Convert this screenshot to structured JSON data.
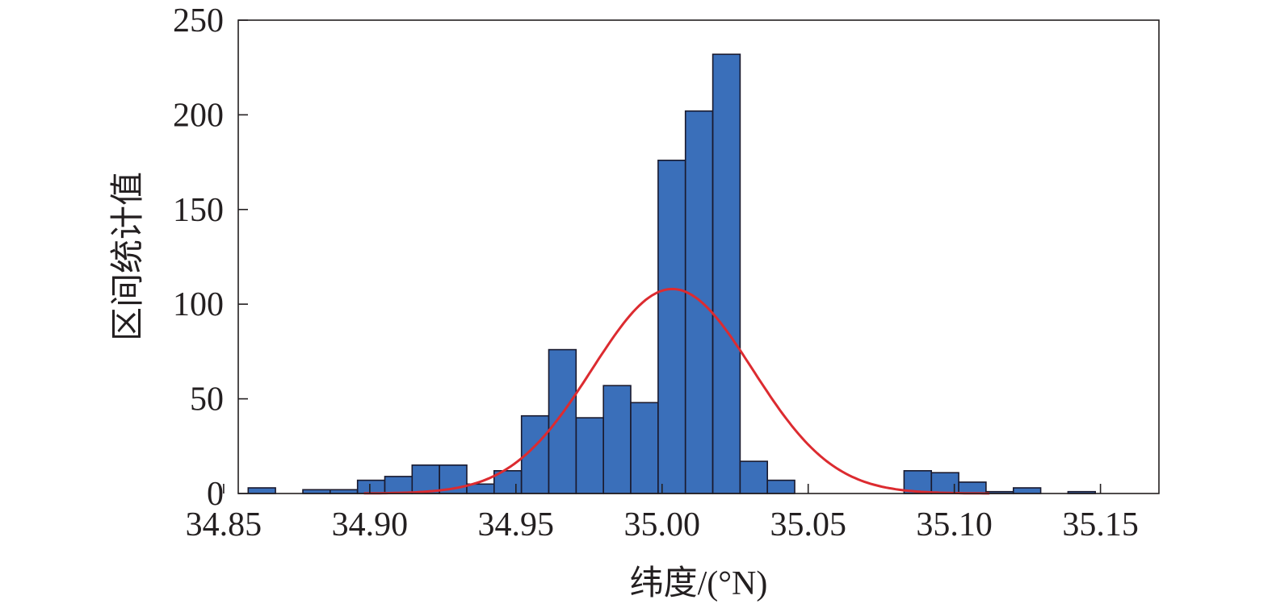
{
  "chart_data": {
    "type": "bar",
    "xlabel": "纬度/(°N)",
    "ylabel": "区间统计值",
    "xlim": [
      34.855,
      35.17
    ],
    "ylim": [
      0,
      250
    ],
    "grid": false,
    "x_ticks": [
      {
        "value": 34.85,
        "label": "34.85"
      },
      {
        "value": 34.9,
        "label": "34.90"
      },
      {
        "value": 34.95,
        "label": "34.95"
      },
      {
        "value": 35.0,
        "label": "35.00"
      },
      {
        "value": 35.05,
        "label": "35.05"
      },
      {
        "value": 35.1,
        "label": "35.10"
      },
      {
        "value": 35.15,
        "label": "35.15"
      }
    ],
    "y_ticks": [
      {
        "value": 0,
        "label": "0"
      },
      {
        "value": 50,
        "label": "50"
      },
      {
        "value": 100,
        "label": "100"
      },
      {
        "value": 150,
        "label": "150"
      },
      {
        "value": 200,
        "label": "200"
      },
      {
        "value": 250,
        "label": "250"
      }
    ],
    "bin_width": 0.00935,
    "bins_start": 34.8584,
    "counts": [
      3,
      0,
      2,
      2,
      7,
      9,
      15,
      15,
      5,
      12,
      41,
      76,
      40,
      57,
      48,
      176,
      202,
      232,
      17,
      7,
      0,
      0,
      0,
      0,
      12,
      11,
      6,
      1,
      3,
      0,
      1
    ],
    "bar_color": "#3a6fba",
    "bar_edge_color": "#1a1a2e",
    "fit_curve": {
      "type": "normal",
      "mean": 35.0035,
      "std": 0.0275,
      "peak": 108,
      "x_range": [
        34.898,
        35.112
      ],
      "color": "#dc2b30"
    }
  }
}
